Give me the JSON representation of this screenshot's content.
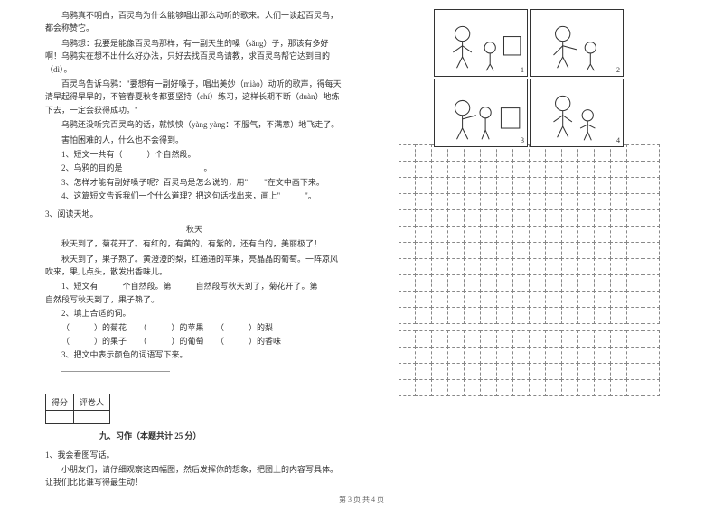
{
  "passage1": {
    "p1": "乌鸦真不明白，百灵鸟为什么能够唱出那么动听的歌来。人们一谈起百灵鸟，都会称赞它。",
    "p2": "乌鸦想：我要是能像百灵鸟那样，有一副天生的嗓（sǎng）子，那该有多好啊！乌鸦实在想不出什么好办法，只好去找百灵鸟请教，求百灵鸟帮它达到目的（dì）。",
    "p3": "百灵鸟告诉乌鸦：\"要想有一副好嗓子，唱出美妙（miào）动听的歌声，得每天清早起得早早的，不管春夏秋冬都要坚持（chí）练习，这样长期不断（duàn）地练下去，一定会获得成功。\"",
    "p4": "乌鸦还没听完百灵鸟的话，就怏怏（yàng yàng：不服气，不满意）地飞走了。",
    "p5": "害怕困难的人，什么也不会得到。",
    "q1": "1、短文一共有（　　　）个自然段。",
    "q2": "2、乌鸦的目的是　　　　　　　　　　。",
    "q3": "3、怎样才能有副好嗓子呢？百灵鸟是怎么说的，用\"　　\"在文中画下来。",
    "q4": "4、这篇短文告诉我们一个什么道理？把这句话找出来，画上\"　　　\"。"
  },
  "passage2": {
    "num": "3、阅读天地。",
    "title": "秋天",
    "p1": "秋天到了，菊花开了。有红的，有黄的，有紫的，还有白的，美丽极了！",
    "p2": "秋天到了，果子熟了。黄澄澄的梨，红通通的苹果，亮晶晶的葡萄。一阵凉风吹来，果儿点头，散发出香味儿。",
    "q1": "1、短文有　　　个自然段。第　　　自然段写秋天到了，菊花开了。第　　　自然段写秋天到了，果子熟了。",
    "q2": "2、填上合适的词。",
    "q2a": "（　　　）的菊花　　（　　　）的苹果　　（　　　）的梨",
    "q2b": "（　　　）的果子　　（　　　）的葡萄　　（　　　）的香味",
    "q3": "3、把文中表示颜色的词语写下来。"
  },
  "score": {
    "label1": "得分",
    "label2": "评卷人"
  },
  "section9": {
    "header": "九、习作（本题共计 25 分）",
    "q1": "1、我会看图写话。",
    "q1desc": "小朋友们，请仔细观察这四幅图，然后发挥你的想象，把图上的内容写具体。让我们比比谁写得最生动！"
  },
  "comic": {
    "panels": [
      "1",
      "2",
      "3",
      "4"
    ]
  },
  "grid": {
    "cols": 16,
    "rows1": 11,
    "rows2": 4,
    "cell_size": 18,
    "border_color": "#888888"
  },
  "footer": "第 3 页 共 4 页",
  "colors": {
    "text": "#333333",
    "bg": "#ffffff",
    "grid_border": "#888888"
  }
}
